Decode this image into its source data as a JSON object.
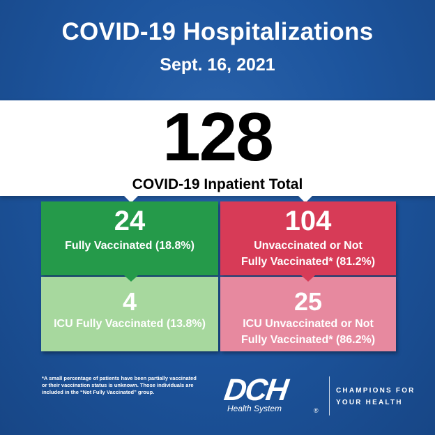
{
  "header": {
    "title": "COVID-19 Hospitalizations",
    "date": "Sept. 16, 2021"
  },
  "total": {
    "value": "128",
    "label": "COVID-19 Inpatient Total"
  },
  "tiles": {
    "fully_vaccinated": {
      "value": "24",
      "label": "Fully Vaccinated (18.8%)",
      "color": "#259a4a"
    },
    "unvaccinated": {
      "value": "104",
      "label_line1": "Unvaccinated or Not",
      "label_line2": "Fully Vaccinated* (81.2%)",
      "color": "#d73b57"
    },
    "icu_fully_vaccinated": {
      "value": "4",
      "label": "ICU Fully Vaccinated (13.8%)",
      "color": "#a7d89e"
    },
    "icu_unvaccinated": {
      "value": "25",
      "label_line1": "ICU Unvaccinated or Not",
      "label_line2": "Fully Vaccinated* (86.2%)",
      "color": "#e7899f"
    }
  },
  "footnote": {
    "line1": "*A small percentage of patients have been partially vaccinated",
    "line2": "or their vaccination status is unknown. Those individuals are",
    "line3": "included in the “Not Fully Vaccinated” group."
  },
  "brand": {
    "logo_text": "DCH",
    "logo_sub": "Health System",
    "registered": "®",
    "tagline_line1": "CHAMPIONS FOR",
    "tagline_line2": "YOUR HEALTH"
  },
  "colors": {
    "background": "#1d559e",
    "band": "#ffffff"
  }
}
